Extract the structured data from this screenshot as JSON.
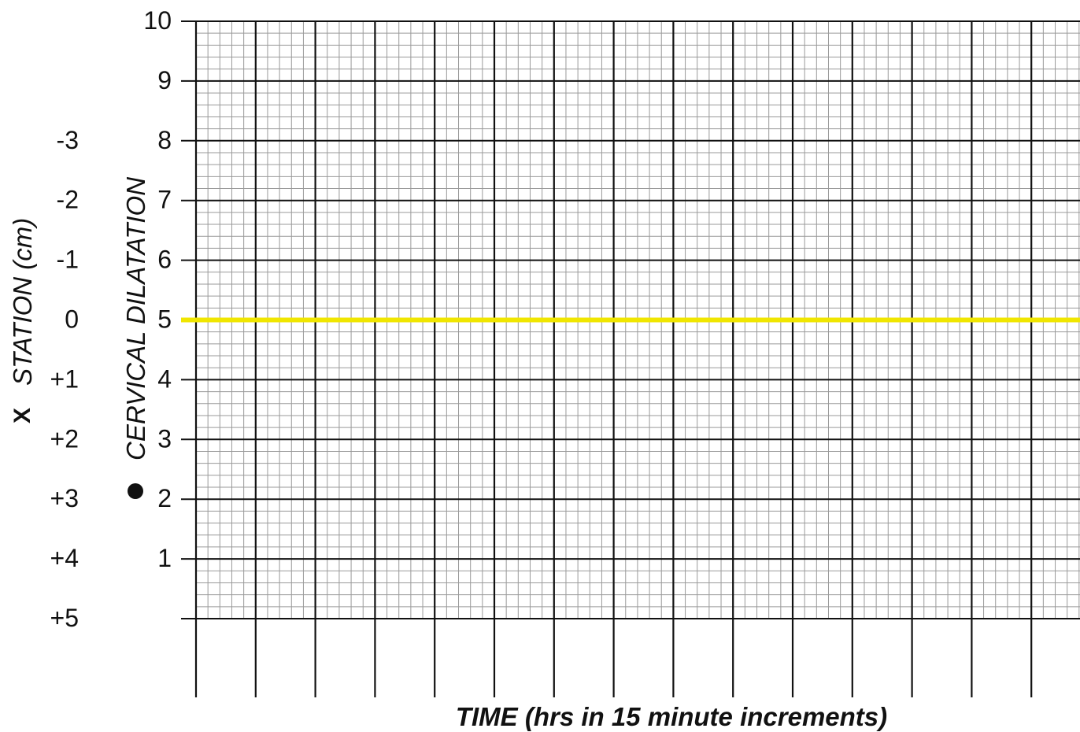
{
  "chart_data": {
    "type": "line",
    "title": "",
    "xlabel": "TIME (hrs in 15 minute increments)",
    "dilatation_axis": {
      "label": "CERVICAL DILATATION",
      "marker": "dot",
      "ticks": [
        "10",
        "9",
        "8",
        "7",
        "6",
        "5",
        "4",
        "3",
        "2",
        "1"
      ],
      "ylim": [
        0,
        10
      ]
    },
    "station_axis": {
      "label": "STATION (cm)",
      "marker": "X",
      "ticks": [
        "-3",
        "-2",
        "-1",
        "0",
        "+1",
        "+2",
        "+3",
        "+4",
        "+5"
      ]
    },
    "reference_line": {
      "y": 5,
      "color": "#f0e600"
    },
    "grid": true,
    "major_time_columns": 15,
    "minor_per_major": 5,
    "colors": {
      "major_grid": "#111111",
      "minor_grid": "#9a9a9a",
      "reference": "#f0e600"
    }
  }
}
